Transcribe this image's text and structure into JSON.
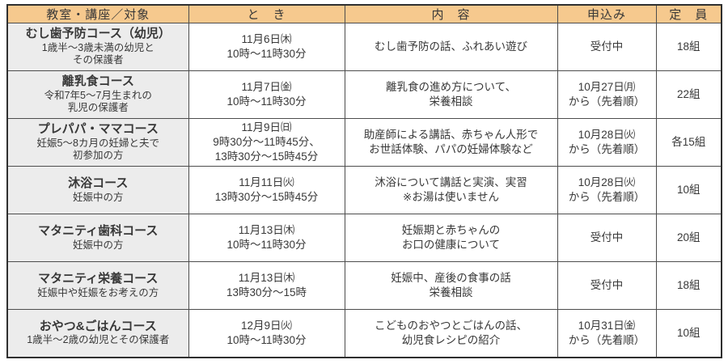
{
  "colors": {
    "header_bg": "#f6c98e",
    "first_col_bg": "#ececec",
    "border_outer": "#2f2f2f",
    "border_inner": "#4d4d4d",
    "text": "#383838",
    "page_bg": "#ffffff"
  },
  "table": {
    "headers": [
      "教室・講座／対象",
      "と　き",
      "内　容",
      "申込み",
      "定　員"
    ],
    "rows": [
      {
        "course": "むし歯予防コース（幼児）",
        "target": "1歳半～3歳未満の幼児と\nその保護者",
        "when": "11月6日㈭\n10時～11時30分",
        "content": "むし歯予防の話、ふれあい遊び",
        "apply": "受付中",
        "capacity": "18組"
      },
      {
        "course": "離乳食コース",
        "target": "令和7年5～7月生まれの\n乳児の保護者",
        "when": "11月7日㈮\n10時～11時30分",
        "content": "離乳食の進め方について、\n栄養相談",
        "apply": "10月27日㈪\nから（先着順）",
        "capacity": "22組"
      },
      {
        "course": "プレパパ・ママコース",
        "target": "妊娠5～8カ月の妊婦と夫で\n初参加の方",
        "when": "11月9日㈰\n9時30分～11時45分、\n13時30分～15時45分",
        "content": "助産師による講話、赤ちゃん人形で\nお世話体験、パパの妊婦体験など",
        "apply": "10月28日㈫\nから（先着順）",
        "capacity": "各15組"
      },
      {
        "course": "沐浴コース",
        "target": "妊娠中の方",
        "when": "11月11日㈫\n13時30分～15時45分",
        "content": "沐浴について講話と実演、実習\n※お湯は使いません",
        "apply": "10月28日㈫\nから（先着順）",
        "capacity": "10組"
      },
      {
        "course": "マタニティ歯科コース",
        "target": "妊娠中の方",
        "when": "11月13日㈭\n10時～11時30分",
        "content": "妊娠期と赤ちゃんの\nお口の健康について",
        "apply": "受付中",
        "capacity": "20組"
      },
      {
        "course": "マタニティ栄養コース",
        "target": "妊娠中や妊娠をお考えの方",
        "when": "11月13日㈭\n13時30分～15時",
        "content": "妊娠中、産後の食事の話\n栄養相談",
        "apply": "受付中",
        "capacity": "18組"
      },
      {
        "course": "おやつ&ごはんコース",
        "target": "1歳半～2歳の幼児とその保護者",
        "when": "12月9日㈫\n10時～11時30分",
        "content": "こどものおやつとごはんの話、\n幼児食レシピの紹介",
        "apply": "10月31日㈮\nから（先着順）",
        "capacity": "10組"
      }
    ]
  }
}
